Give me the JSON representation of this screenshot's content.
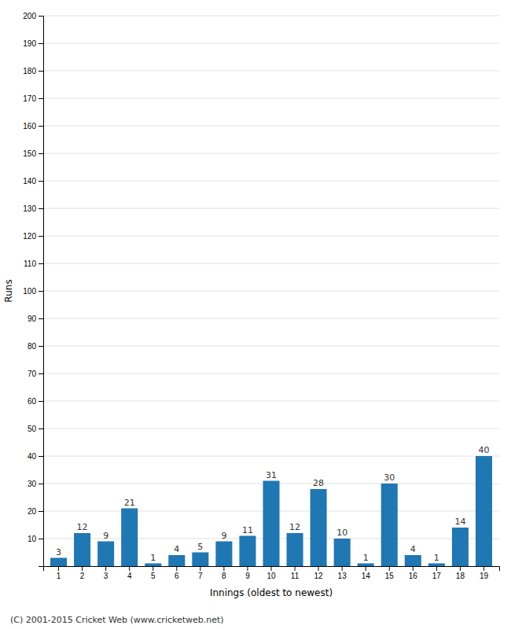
{
  "chart_data": {
    "type": "bar",
    "xlabel": "Innings (oldest to newest)",
    "ylabel": "Runs",
    "categories": [
      "1",
      "2",
      "3",
      "4",
      "5",
      "6",
      "7",
      "8",
      "9",
      "10",
      "11",
      "12",
      "13",
      "14",
      "15",
      "16",
      "17",
      "18",
      "19"
    ],
    "values": [
      3,
      12,
      9,
      21,
      1,
      4,
      5,
      9,
      11,
      31,
      12,
      28,
      10,
      1,
      30,
      4,
      1,
      14,
      40
    ],
    "ylim": [
      0,
      200
    ],
    "yticks": [
      10,
      20,
      30,
      40,
      50,
      60,
      70,
      80,
      90,
      100,
      110,
      120,
      130,
      140,
      150,
      160,
      170,
      180,
      190,
      200
    ],
    "grid": true,
    "data_labels": true,
    "annotations": [
      "(C) 2001-2015 Cricket Web (www.cricketweb.net)"
    ]
  }
}
